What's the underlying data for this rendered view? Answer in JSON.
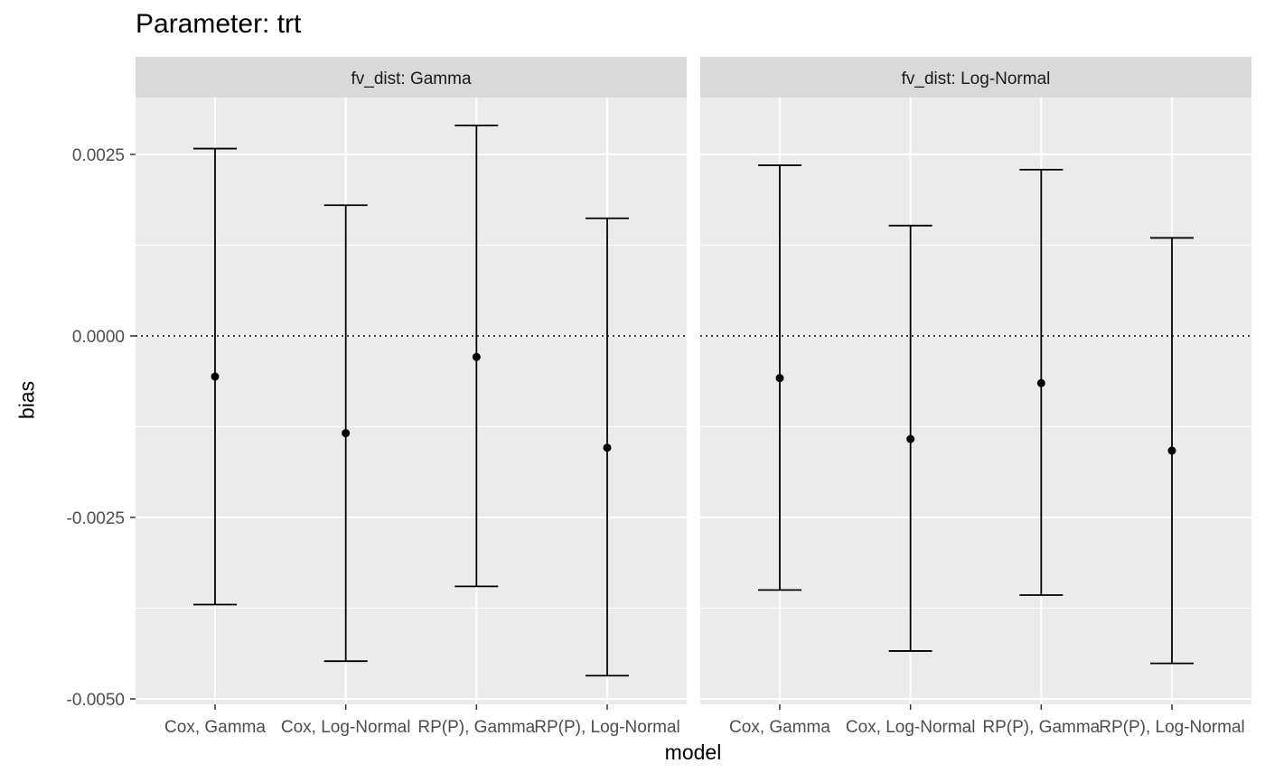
{
  "title": "Parameter: trt",
  "xlabel": "model",
  "ylabel": "bias",
  "chart_data": {
    "type": "errorbar",
    "title": "Parameter: trt",
    "xlabel": "model",
    "ylabel": "bias",
    "facet_variable": "fv_dist",
    "categories": [
      "Cox, Gamma",
      "Cox, Log-Normal",
      "RP(P), Gamma",
      "RP(P), Log-Normal"
    ],
    "ylim": [
      -0.005,
      0.0035
    ],
    "y_ticks": [
      {
        "value": 0.0025,
        "label": "0.0025"
      },
      {
        "value": 0.0,
        "label": "0.0000"
      },
      {
        "value": -0.0025,
        "label": "-0.0025"
      },
      {
        "value": -0.005,
        "label": "-0.0050"
      }
    ],
    "reference_line": {
      "y": 0,
      "style": "dotted"
    },
    "grid": true,
    "panels": [
      {
        "label": "fv_dist: Gamma",
        "points": [
          {
            "category": "Cox, Gamma",
            "estimate": -0.00056,
            "lower": -0.0037,
            "upper": 0.00258
          },
          {
            "category": "Cox, Log-Normal",
            "estimate": -0.00134,
            "lower": -0.00448,
            "upper": 0.0018
          },
          {
            "category": "RP(P), Gamma",
            "estimate": -0.00029,
            "lower": -0.00345,
            "upper": 0.0029
          },
          {
            "category": "RP(P), Log-Normal",
            "estimate": -0.00154,
            "lower": -0.00468,
            "upper": 0.00162
          }
        ]
      },
      {
        "label": "fv_dist: Log-Normal",
        "points": [
          {
            "category": "Cox, Gamma",
            "estimate": -0.00058,
            "lower": -0.0035,
            "upper": 0.00235
          },
          {
            "category": "Cox, Log-Normal",
            "estimate": -0.00142,
            "lower": -0.00434,
            "upper": 0.00152
          },
          {
            "category": "RP(P), Gamma",
            "estimate": -0.00065,
            "lower": -0.00357,
            "upper": 0.00229
          },
          {
            "category": "RP(P), Log-Normal",
            "estimate": -0.00158,
            "lower": -0.00451,
            "upper": 0.00135
          }
        ]
      }
    ]
  }
}
